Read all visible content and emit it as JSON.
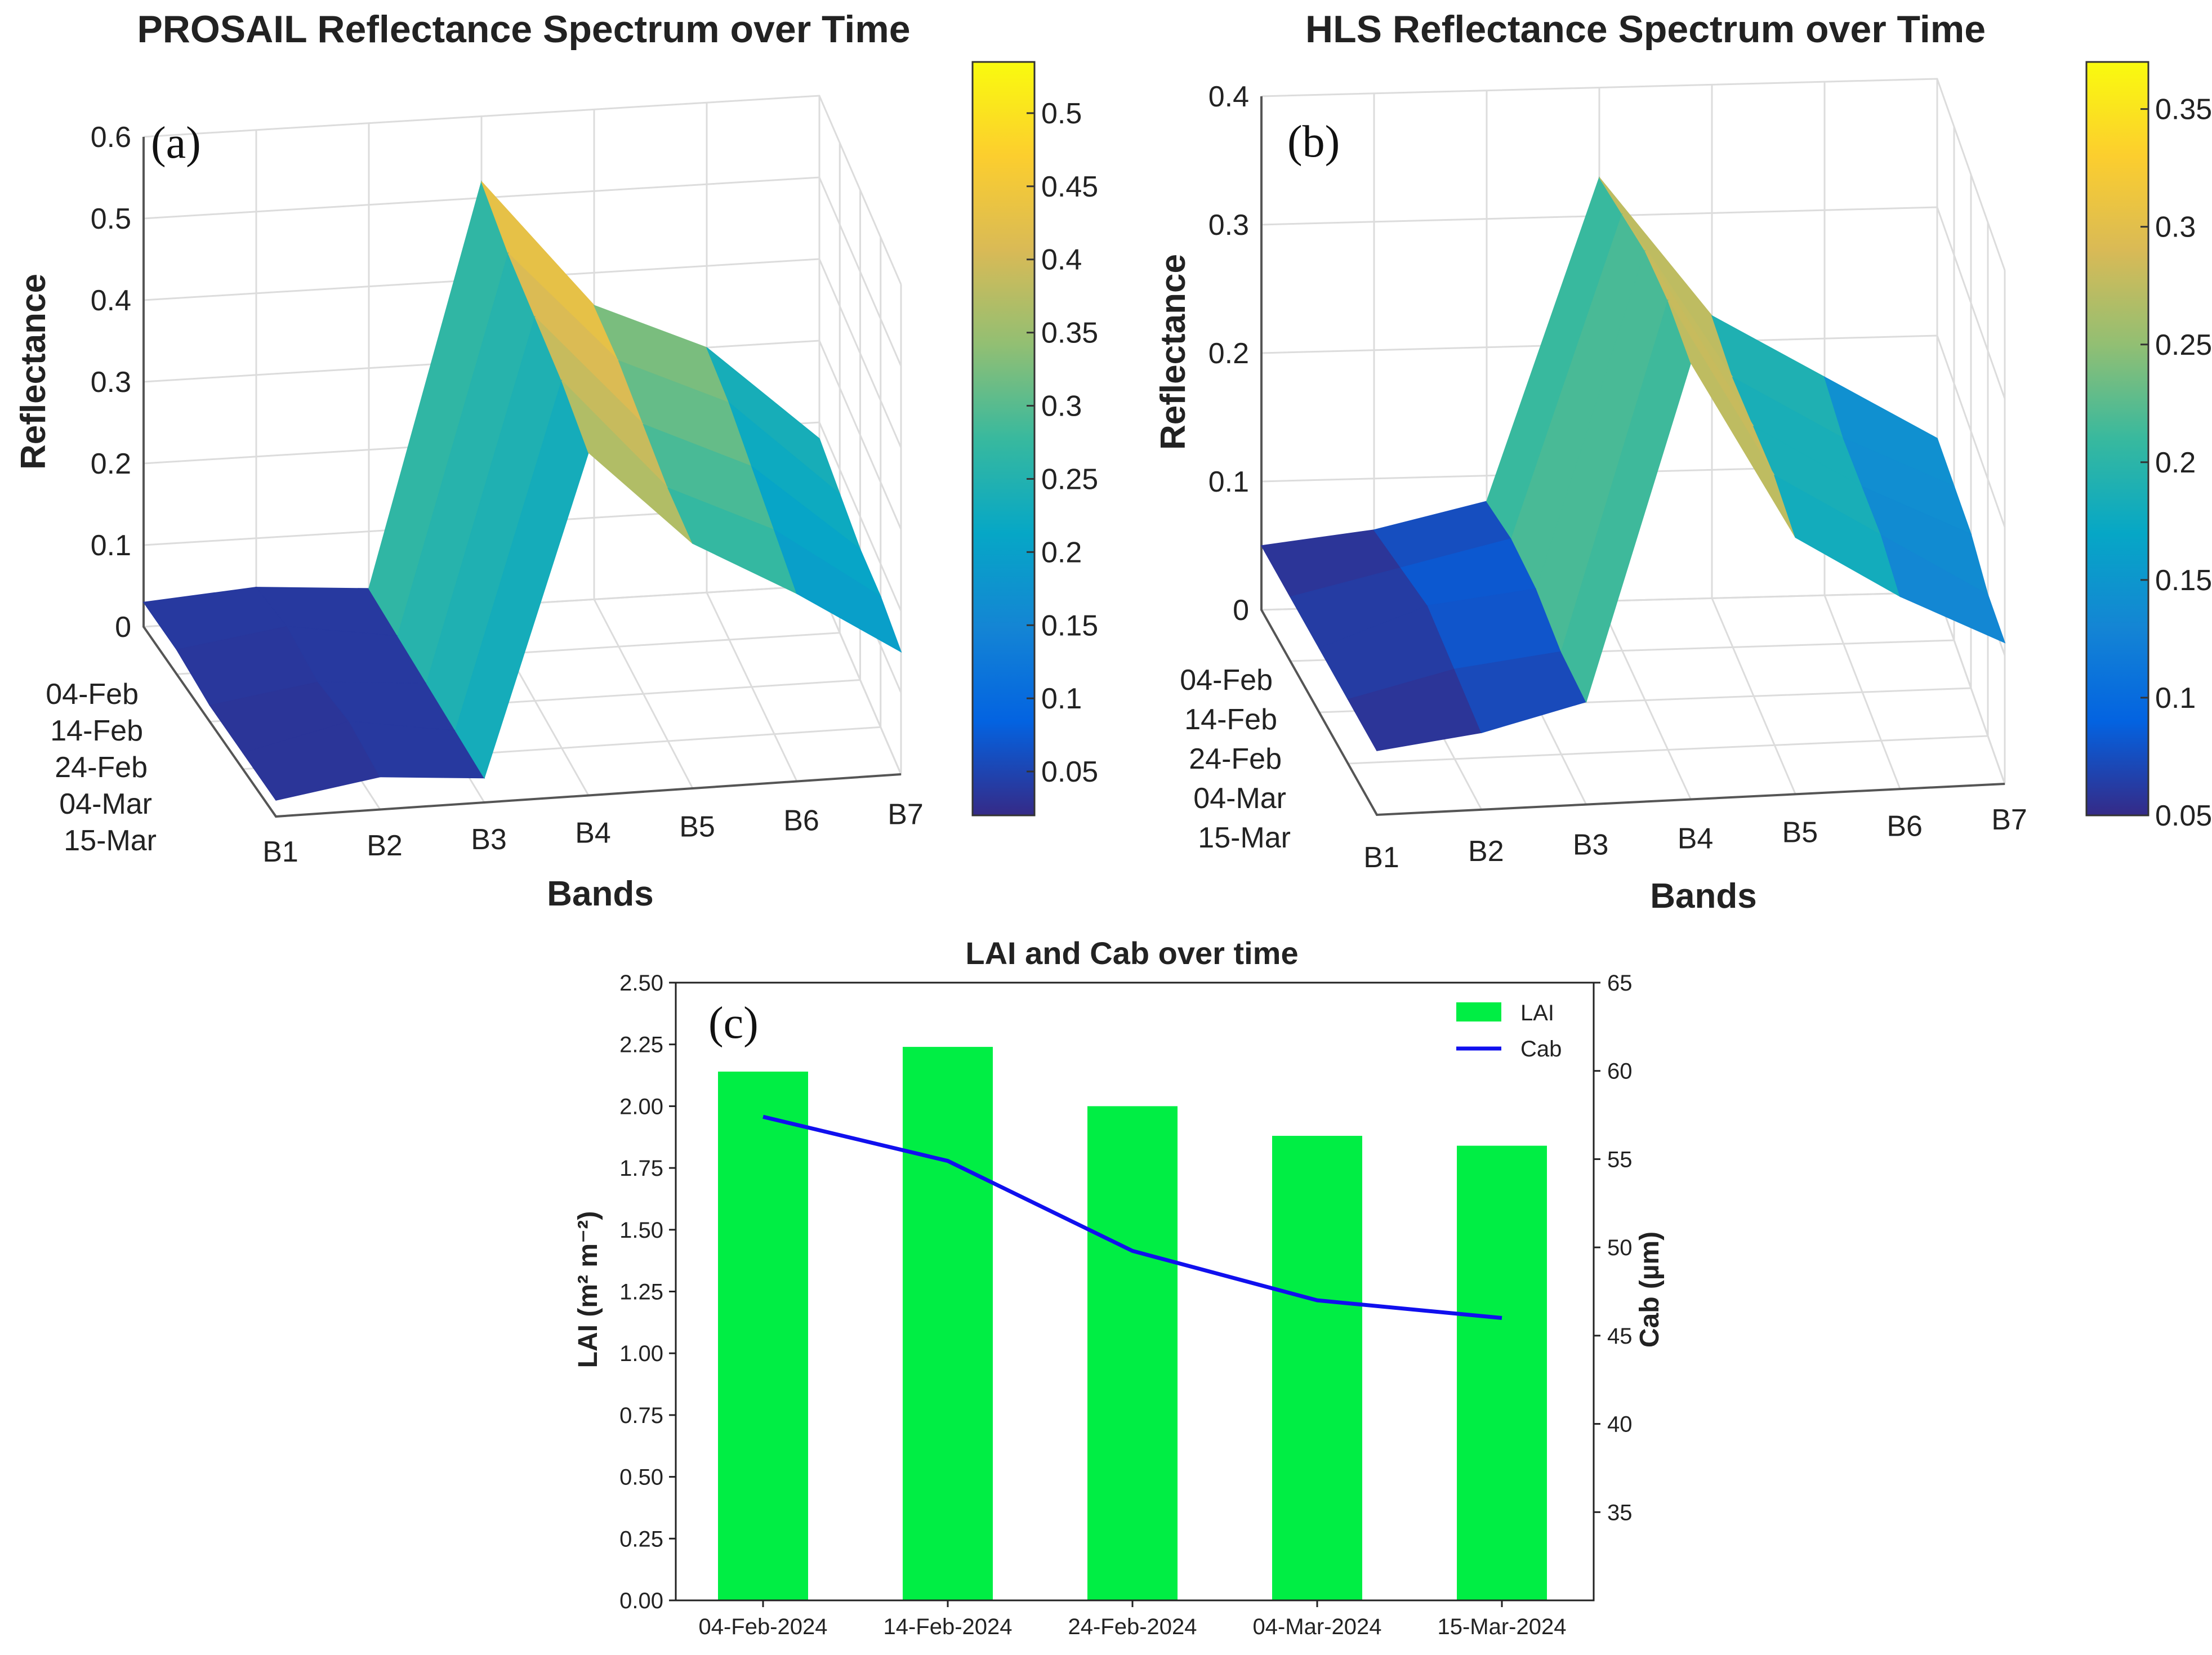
{
  "colors": {
    "lai_bar": "#00ee44",
    "cab_line": "#1010ee",
    "grid3d": "#dcdcdc",
    "axis": "#222222",
    "parula": [
      "#352a87",
      "#0363e1",
      "#1485d4",
      "#06a7c6",
      "#38b99e",
      "#92bf73",
      "#d9ba56",
      "#fcce2e",
      "#f9fb0e"
    ]
  },
  "chart_data": [
    {
      "id": "a",
      "type": "surface",
      "panel_label": "(a)",
      "title": "PROSAIL Reflectance Spectrum over Time",
      "xlabel": "Bands",
      "ylabel": "Reflectance",
      "bands": [
        "B1",
        "B2",
        "B3",
        "B4",
        "B5",
        "B6",
        "B7"
      ],
      "dates": [
        "04-Feb",
        "14-Feb",
        "24-Feb",
        "04-Mar",
        "15-Mar"
      ],
      "zlim": [
        0,
        0.6
      ],
      "zticks": [
        "0",
        "0.1",
        "0.2",
        "0.3",
        "0.4",
        "0.5",
        "0.6"
      ],
      "colorbar": {
        "range": [
          0.02,
          0.535
        ],
        "ticks": [
          0.05,
          0.1,
          0.15,
          0.2,
          0.25,
          0.3,
          0.35,
          0.4,
          0.45,
          0.5
        ],
        "labels": [
          "0.05",
          "0.1",
          "0.15",
          "0.2",
          "0.25",
          "0.3",
          "0.35",
          "0.4",
          "0.45",
          "0.5"
        ]
      },
      "values": [
        [
          0.03,
          0.04,
          0.03,
          0.52,
          0.36,
          0.3,
          0.18
        ],
        [
          0.03,
          0.05,
          0.03,
          0.49,
          0.35,
          0.29,
          0.17
        ],
        [
          0.02,
          0.04,
          0.03,
          0.47,
          0.33,
          0.27,
          0.16
        ],
        [
          0.02,
          0.05,
          0.03,
          0.45,
          0.31,
          0.25,
          0.16
        ],
        [
          0.02,
          0.04,
          0.03,
          0.42,
          0.3,
          0.23,
          0.15
        ]
      ]
    },
    {
      "id": "b",
      "type": "surface",
      "panel_label": "(b)",
      "title": "HLS Reflectance Spectrum over Time",
      "xlabel": "Bands",
      "ylabel": "Reflectance",
      "bands": [
        "B1",
        "B2",
        "B3",
        "B4",
        "B5",
        "B6",
        "B7"
      ],
      "dates": [
        "04-Feb",
        "14-Feb",
        "24-Feb",
        "04-Mar",
        "15-Mar"
      ],
      "zlim": [
        0,
        0.4
      ],
      "zticks": [
        "0",
        "0.1",
        "0.2",
        "0.3",
        "0.4"
      ],
      "colorbar": {
        "range": [
          0.05,
          0.37
        ],
        "ticks": [
          0.05,
          0.1,
          0.15,
          0.2,
          0.25,
          0.3,
          0.35
        ],
        "labels": [
          "0.05",
          "0.1",
          "0.15",
          "0.2",
          "0.25",
          "0.3",
          "0.35"
        ]
      },
      "values": [
        [
          0.05,
          0.06,
          0.08,
          0.33,
          0.22,
          0.17,
          0.12
        ],
        [
          0.05,
          0.07,
          0.09,
          0.34,
          0.21,
          0.16,
          0.12
        ],
        [
          0.05,
          0.08,
          0.09,
          0.35,
          0.21,
          0.16,
          0.12
        ],
        [
          0.05,
          0.07,
          0.08,
          0.35,
          0.21,
          0.16,
          0.11
        ],
        [
          0.05,
          0.06,
          0.08,
          0.34,
          0.2,
          0.15,
          0.11
        ]
      ]
    },
    {
      "id": "c",
      "type": "bar+line",
      "panel_label": "(c)",
      "title": "LAI and Cab over time",
      "categories": [
        "04-Feb-2024",
        "14-Feb-2024",
        "24-Feb-2024",
        "04-Mar-2024",
        "15-Mar-2024"
      ],
      "series": [
        {
          "name": "LAI",
          "type": "bar",
          "axis": "left",
          "values": [
            2.14,
            2.24,
            2.0,
            1.88,
            1.84
          ]
        },
        {
          "name": "Cab",
          "type": "line",
          "axis": "right",
          "values": [
            57.4,
            54.9,
            49.8,
            47.0,
            46.0
          ]
        }
      ],
      "ylabel_left": "LAI (m² m⁻²)",
      "ylabel_right": "Cab (µm)",
      "ylim_left": [
        0,
        2.5
      ],
      "yticks_left": [
        "0.00",
        "0.25",
        "0.50",
        "0.75",
        "1.00",
        "1.25",
        "1.50",
        "1.75",
        "2.00",
        "2.25",
        "2.50"
      ],
      "ylim_right": [
        30,
        65
      ],
      "yticks_right": [
        "35",
        "40",
        "45",
        "50",
        "55",
        "60",
        "65"
      ],
      "legend_position": "top-right"
    }
  ]
}
